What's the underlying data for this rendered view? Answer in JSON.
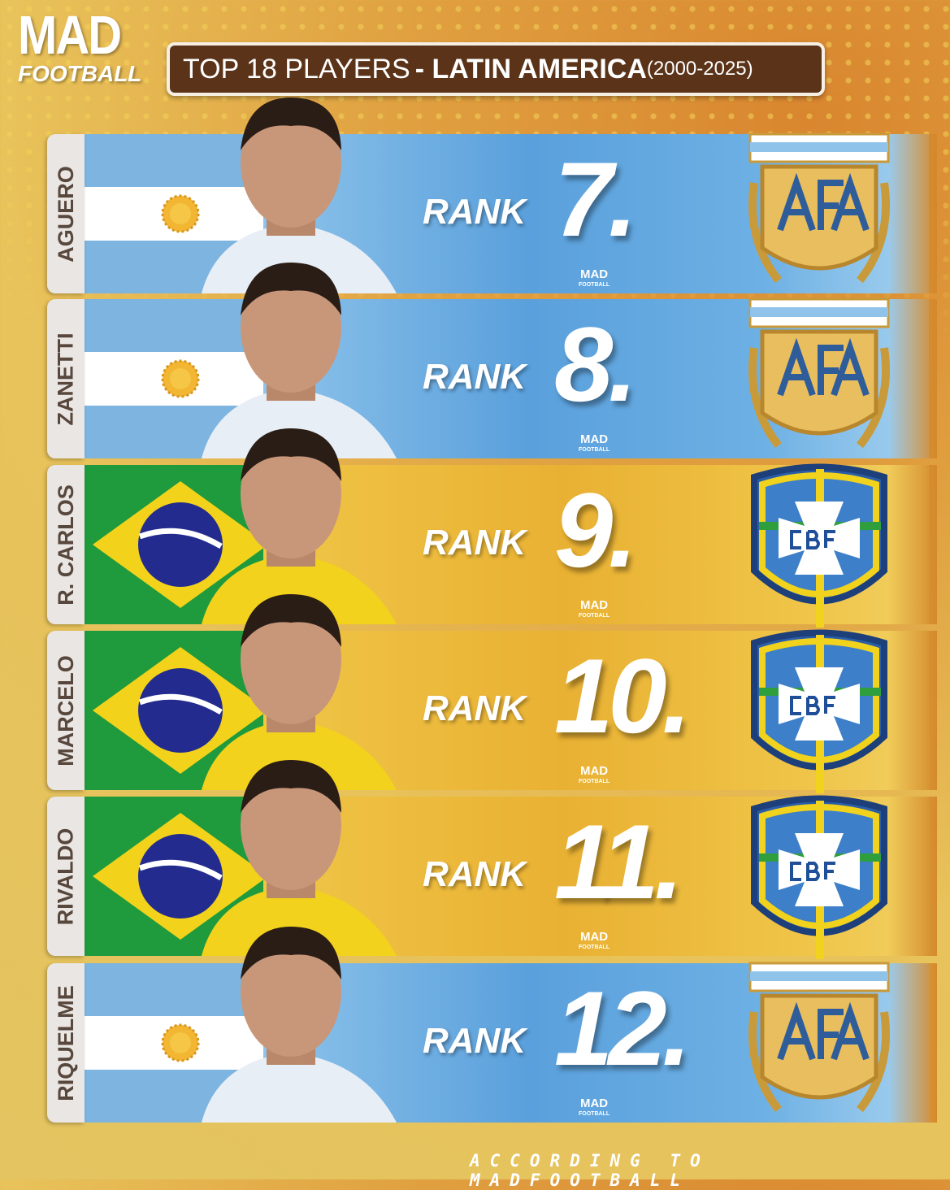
{
  "brand": {
    "line1": "MAD",
    "line2": "FOOTBALL"
  },
  "header": {
    "title_prefix": "TOP 18 PLAYERS",
    "title_main": "- LATIN AMERICA",
    "title_years": "(2000-2025)"
  },
  "rank_label": "RANK",
  "watermark": {
    "line1": "MAD",
    "line2": "FOOTBALL"
  },
  "colors": {
    "argentina_band": "#5aa0dc",
    "brazil_band": "#e9b133",
    "title_bg": "#5a3318"
  },
  "players": [
    {
      "name": "AGUERO",
      "rank": "7.",
      "country": "argentina",
      "crest": "AFA"
    },
    {
      "name": "ZANETTI",
      "rank": "8.",
      "country": "argentina",
      "crest": "AFA"
    },
    {
      "name": "R. CARLOS",
      "rank": "9.",
      "country": "brazil",
      "crest": "CBF"
    },
    {
      "name": "MARCELO",
      "rank": "10.",
      "country": "brazil",
      "crest": "CBF"
    },
    {
      "name": "RIVALDO",
      "rank": "11.",
      "country": "brazil",
      "crest": "CBF"
    },
    {
      "name": "RIQUELME",
      "rank": "12.",
      "country": "argentina",
      "crest": "AFA"
    }
  ],
  "footer": "ACCORDING TO MADFOOTBALL"
}
